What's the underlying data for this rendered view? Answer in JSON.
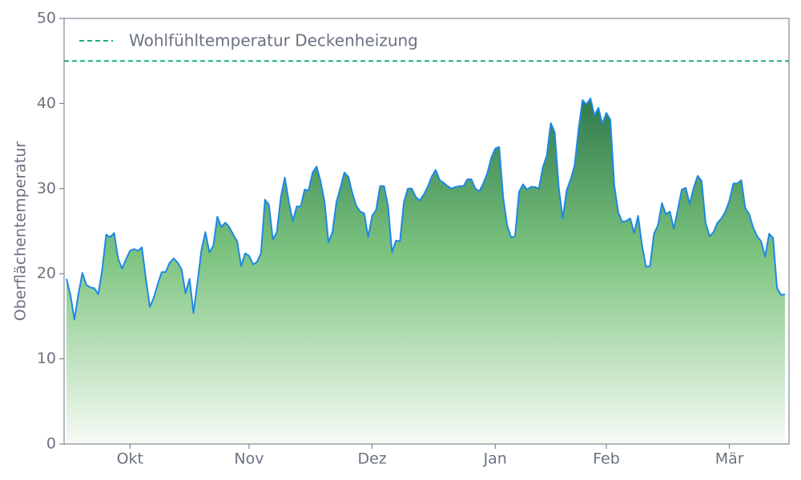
{
  "chart_data": {
    "type": "area",
    "y_label": "Oberflächentemperatur",
    "categories": [
      null,
      null,
      null,
      null,
      null,
      null,
      null,
      null,
      null,
      null,
      null,
      null,
      null,
      null,
      null,
      null,
      "Okt",
      null,
      null,
      null,
      null,
      null,
      null,
      null,
      null,
      null,
      null,
      null,
      null,
      null,
      null,
      null,
      null,
      null,
      null,
      null,
      null,
      null,
      null,
      null,
      null,
      null,
      null,
      null,
      null,
      null,
      "Nov",
      null,
      null,
      null,
      null,
      null,
      null,
      null,
      null,
      null,
      null,
      null,
      null,
      null,
      null,
      null,
      null,
      null,
      null,
      null,
      null,
      null,
      null,
      null,
      null,
      null,
      null,
      null,
      null,
      null,
      null,
      "Dez",
      null,
      null,
      null,
      null,
      null,
      null,
      null,
      null,
      null,
      null,
      null,
      null,
      null,
      null,
      null,
      null,
      null,
      null,
      null,
      null,
      null,
      null,
      null,
      null,
      null,
      null,
      null,
      null,
      null,
      null,
      "Jan",
      null,
      null,
      null,
      null,
      null,
      null,
      null,
      null,
      null,
      null,
      null,
      null,
      null,
      null,
      null,
      null,
      null,
      null,
      null,
      null,
      null,
      null,
      null,
      null,
      null,
      null,
      null,
      "Feb",
      null,
      null,
      null,
      null,
      null,
      null,
      null,
      null,
      null,
      null,
      null,
      null,
      null,
      null,
      null,
      null,
      null,
      null,
      null,
      null,
      null,
      null,
      null,
      null,
      null,
      null,
      null,
      null,
      null,
      null,
      "Mär",
      null,
      null,
      null,
      null,
      null,
      null,
      null,
      null,
      null,
      null,
      null,
      null,
      null,
      null
    ],
    "series": [
      {
        "color": "#1e88e5",
        "values": [
          19.4,
          17.5,
          14.6,
          17.6,
          20.1,
          18.7,
          18.4,
          18.3,
          17.6,
          20.5,
          24.6,
          24.3,
          24.8,
          21.8,
          20.6,
          21.7,
          22.7,
          22.9,
          22.7,
          23.1,
          19.4,
          16.1,
          17.2,
          18.8,
          20.2,
          20.2,
          21.3,
          21.8,
          21.3,
          20.5,
          17.7,
          19.4,
          15.4,
          19.0,
          22.8,
          24.9,
          22.5,
          23.3,
          26.7,
          25.5,
          26.0,
          25.5,
          24.6,
          23.8,
          20.9,
          22.4,
          22.1,
          21.1,
          21.4,
          22.4,
          28.7,
          28.1,
          24.0,
          24.9,
          29.0,
          31.3,
          28.5,
          26.2,
          27.9,
          27.9,
          29.9,
          29.8,
          31.9,
          32.6,
          30.9,
          28.5,
          23.7,
          24.9,
          28.4,
          30.1,
          31.9,
          31.4,
          29.5,
          28.0,
          27.3,
          27.1,
          24.3,
          26.8,
          27.5,
          30.3,
          30.3,
          28.0,
          22.5,
          23.9,
          23.8,
          28.4,
          30.0,
          30.0,
          29.0,
          28.6,
          29.3,
          30.2,
          31.4,
          32.2,
          31.0,
          30.7,
          30.3,
          30.0,
          30.2,
          30.3,
          30.3,
          31.1,
          31.1,
          30.0,
          29.7,
          30.6,
          31.8,
          33.6,
          34.7,
          34.9,
          29.0,
          25.7,
          24.3,
          24.4,
          29.6,
          30.5,
          29.9,
          30.2,
          30.2,
          30.0,
          32.5,
          33.9,
          37.7,
          36.6,
          30.2,
          26.5,
          29.8,
          31.1,
          32.7,
          37.0,
          40.4,
          39.9,
          40.6,
          38.6,
          39.5,
          37.6,
          38.9,
          38.1,
          30.4,
          27.2,
          26.1,
          26.2,
          26.5,
          24.8,
          26.8,
          23.3,
          20.8,
          20.9,
          24.7,
          25.7,
          28.3,
          27.0,
          27.3,
          25.3,
          27.5,
          29.9,
          30.1,
          28.2,
          30.1,
          31.5,
          30.9,
          26.0,
          24.4,
          24.9,
          26.0,
          26.5,
          27.3,
          28.6,
          30.6,
          30.6,
          31.0,
          27.7,
          27.0,
          25.4,
          24.4,
          23.8,
          22.0,
          24.7,
          24.2,
          18.3,
          17.5,
          17.6
        ]
      }
    ],
    "fill_colors": [
      "#2f7a4b",
      "#7cc47f",
      "#f7fbf5"
    ],
    "reference_line": {
      "name": "Wohlfühltemperatur Deckenheizung",
      "value": 45,
      "color": "#1aad7f"
    },
    "ylim": [
      0,
      50
    ],
    "yticks": [
      0,
      10,
      20,
      30,
      40,
      50
    ],
    "legend": "upper left"
  }
}
